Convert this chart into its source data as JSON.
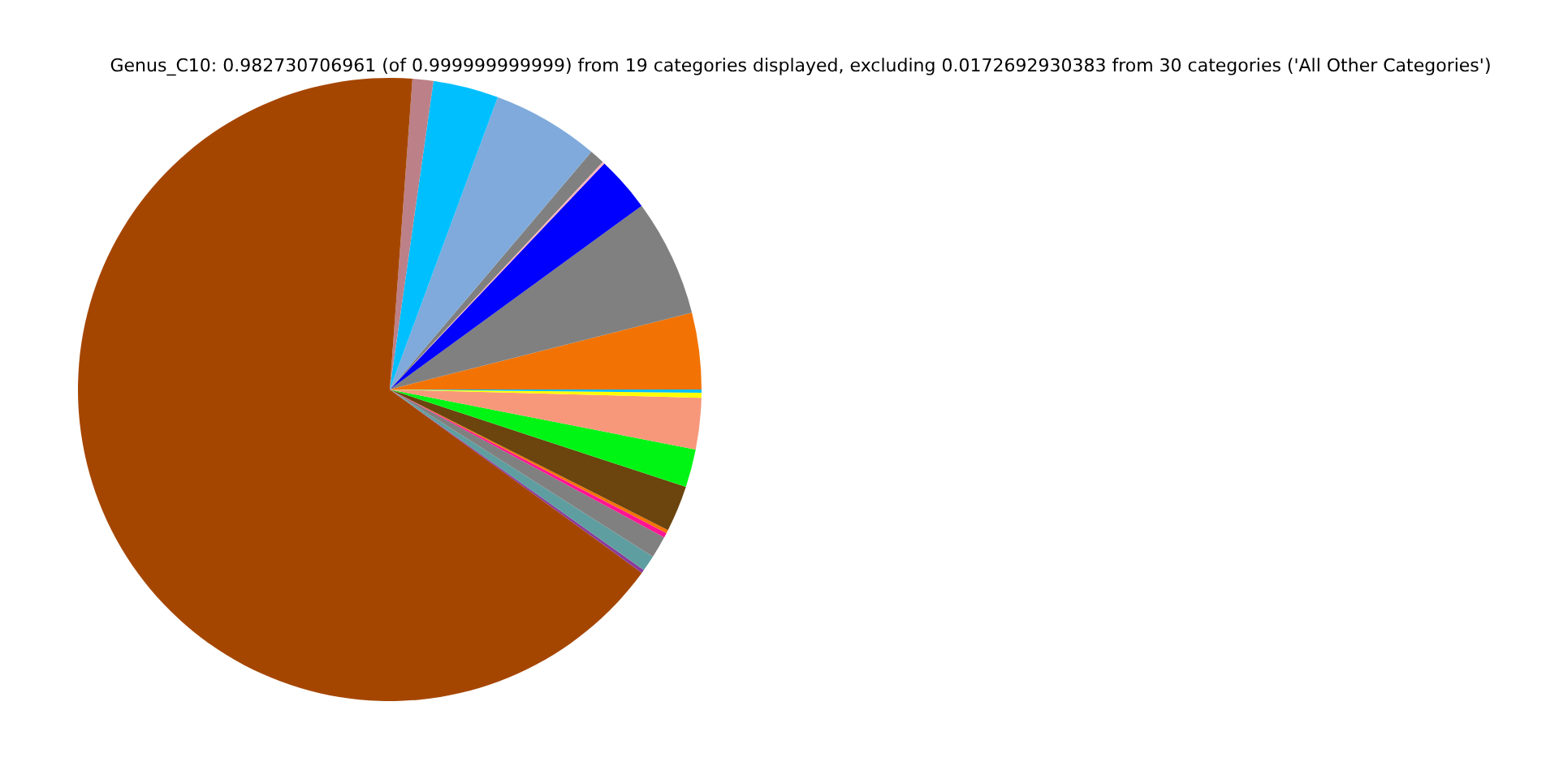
{
  "chart_data": {
    "type": "pie",
    "title": "Genus_C10: 0.982730706961 (of 0.999999999999) from 19 categories displayed, excluding 0.0172692930383 from 30 categories ('All Other Categories')",
    "categories": [
      null,
      null,
      null,
      null,
      null,
      null,
      null,
      null,
      null,
      null,
      null,
      null,
      null,
      null,
      null,
      null,
      null,
      null,
      null
    ],
    "values": [
      3.97,
      6.06,
      2.89,
      0.11,
      0.78,
      5.56,
      3.39,
      1.08,
      66.15,
      0.17,
      0.83,
      1.14,
      0.25,
      0.17,
      2.39,
      1.97,
      2.67,
      0.25,
      0.17
    ],
    "colors": [
      "#f27304",
      "#808080",
      "#0000ff",
      "#ffb6c1",
      "#808080",
      "#7faadb",
      "#00bfff",
      "#bc8088",
      "#a54600",
      "#8b3a9b",
      "#5f9ea0",
      "#808080",
      "#ff1493",
      "#f27304",
      "#6b440e",
      "#00f514",
      "#f7987a",
      "#ffff00",
      "#00bfff"
    ]
  }
}
